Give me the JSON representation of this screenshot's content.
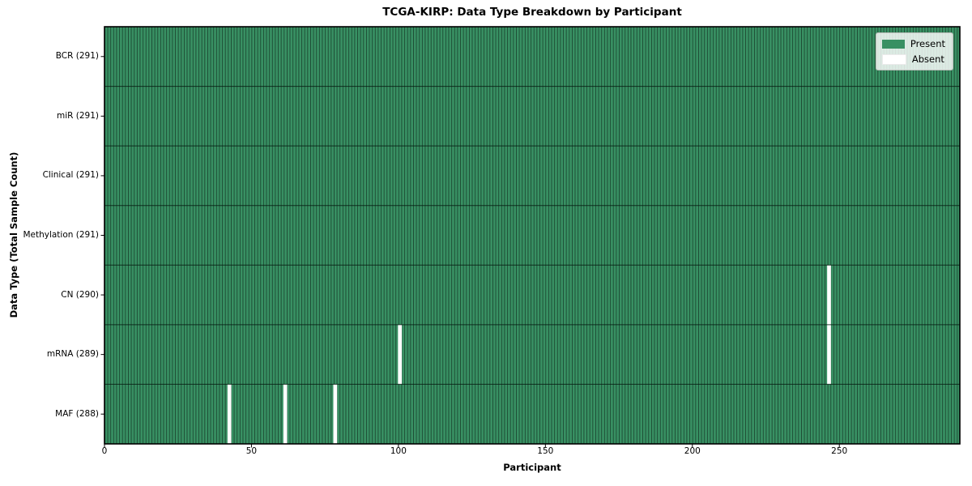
{
  "title": "TCGA-KIRP: Data Type Breakdown by Participant",
  "x_axis": {
    "label": "Participant",
    "ticks": [
      0,
      50,
      100,
      150,
      200,
      250
    ]
  },
  "y_axis": {
    "label": "Data Type (Total Sample Count)"
  },
  "legend": {
    "items": [
      {
        "label": "Present",
        "color": "#389063"
      },
      {
        "label": "Absent",
        "color": "#ffffff"
      }
    ]
  },
  "chart_data": {
    "type": "heatmap",
    "title": "TCGA-KIRP: Data Type Breakdown by Participant",
    "xlabel": "Participant",
    "ylabel": "Data Type (Total Sample Count)",
    "n_participants": 291,
    "xlim": [
      0,
      291
    ],
    "x_ticks": [
      0,
      50,
      100,
      150,
      200,
      250
    ],
    "legend_position": "upper right",
    "grid": false,
    "rows": [
      {
        "label": "BCR (291)",
        "data_type": "BCR",
        "present_count": 291,
        "absent_participants": []
      },
      {
        "label": "miR (291)",
        "data_type": "miR",
        "present_count": 291,
        "absent_participants": []
      },
      {
        "label": "Clinical (291)",
        "data_type": "Clinical",
        "present_count": 291,
        "absent_participants": []
      },
      {
        "label": "Methylation (291)",
        "data_type": "Methylation",
        "present_count": 291,
        "absent_participants": []
      },
      {
        "label": "CN (290)",
        "data_type": "CN",
        "present_count": 290,
        "absent_participants": [
          246
        ]
      },
      {
        "label": "mRNA (289)",
        "data_type": "mRNA",
        "present_count": 289,
        "absent_participants": [
          100,
          246
        ]
      },
      {
        "label": "MAF (288)",
        "data_type": "MAF",
        "present_count": 288,
        "absent_participants": [
          42,
          61,
          78
        ]
      }
    ],
    "colors": {
      "present": "#389063",
      "absent": "#ffffff",
      "bar_edge": "rgba(0,0,0,0.55)",
      "row_separator": "rgba(5,25,15,0.8)",
      "plot_border": "#000000"
    }
  }
}
